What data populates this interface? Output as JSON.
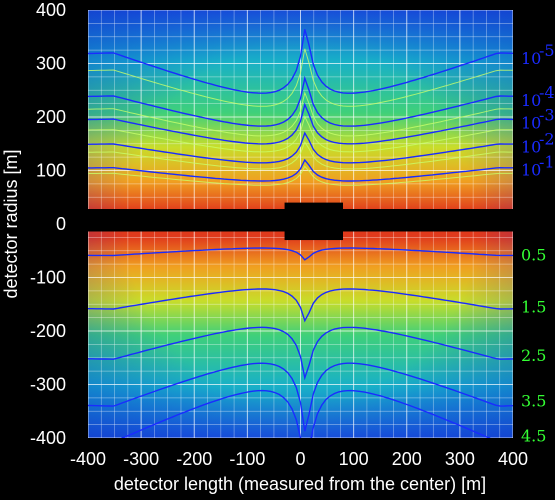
{
  "chart_data": {
    "type": "heatmap",
    "xlabel": "detector length (measured from the center) [m]",
    "ylabel": "detector radius [m]",
    "xlim": [
      -400,
      400
    ],
    "ylim": [
      -400,
      400
    ],
    "x_ticks": [
      "-400",
      "-300",
      "-200",
      "-100",
      "0",
      "100",
      "200",
      "300",
      "400"
    ],
    "y_ticks": [
      "400",
      "300",
      "200",
      "100",
      "0",
      "-100",
      "-200",
      "-300",
      "-400"
    ],
    "grid": true,
    "colors": {
      "contour_upper": "#1a2bff",
      "contour_lower_line": "#1a2bff",
      "contour_lower_label": "#33ff33",
      "masked": "#000000"
    },
    "upper_contours": [
      {
        "level_base": "10",
        "level_exp": "-5",
        "y_at_right": 310
      },
      {
        "level_base": "10",
        "level_exp": "-4",
        "y_at_right": 232
      },
      {
        "level_base": "10",
        "level_exp": "-3",
        "y_at_right": 190
      },
      {
        "level_base": "10",
        "level_exp": "-2",
        "y_at_right": 145
      },
      {
        "level_base": "10",
        "level_exp": "-1",
        "y_at_right": 102
      }
    ],
    "lower_contours": [
      {
        "level": "0.5",
        "y_at_right": -57
      },
      {
        "level": "1.5",
        "y_at_right": -154
      },
      {
        "level": "2.5",
        "y_at_right": -245
      },
      {
        "level": "3.5",
        "y_at_right": -330
      },
      {
        "level": "4.5",
        "y_at_right": -395
      }
    ],
    "masked_regions": [
      {
        "x": [
          -400,
          400
        ],
        "y": [
          -14,
          28
        ]
      },
      {
        "x": [
          -30,
          80
        ],
        "y": [
          -30,
          40
        ]
      }
    ]
  }
}
